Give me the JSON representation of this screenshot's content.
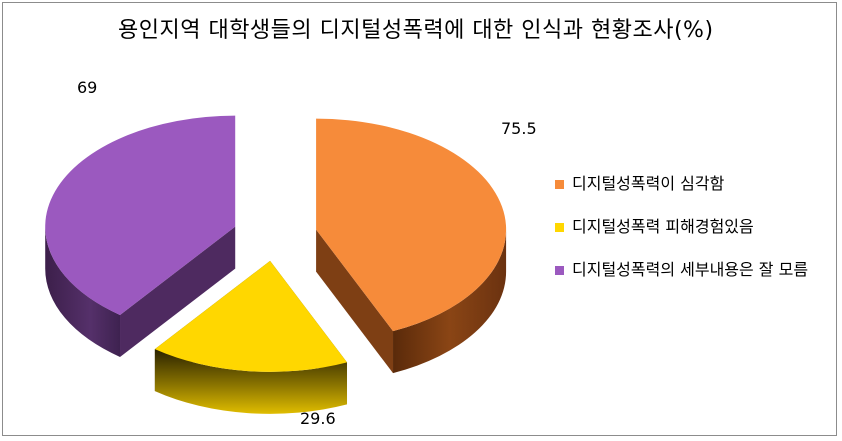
{
  "chart_data": {
    "type": "pie",
    "title": "용인지역 대학생들의 디지털성폭력에 대한 인식과 현황조사(%)",
    "categories": [
      "디지털성폭력이 심각함",
      "디지털성폭력 피해경험있음",
      "디지털성폭력의 세부내용은 잘 모름"
    ],
    "values": [
      75.5,
      29.6,
      69
    ],
    "data_labels": [
      "75.5",
      "29.6",
      "69"
    ],
    "colors": [
      "#F68B3A",
      "#FFD700",
      "#9B59BF"
    ],
    "side_colors": [
      "#7E3F14",
      "#5C4A00",
      "#4E2A60"
    ],
    "style": "3d-exploded",
    "legend_position": "right"
  }
}
